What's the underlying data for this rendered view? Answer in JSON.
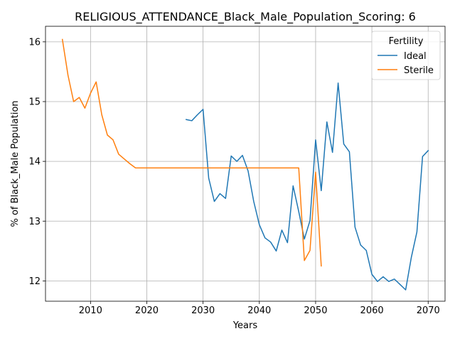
{
  "chart_data": {
    "type": "line",
    "title": "RELIGIOUS_ATTENDANCE_Black_Male_Population_Scoring: 6",
    "xlabel": "Years",
    "ylabel": "% of Black_Male Population",
    "xlim": [
      2002,
      2073
    ],
    "ylim": [
      11.66,
      16.26
    ],
    "xticks": [
      2010,
      2020,
      2030,
      2040,
      2050,
      2060,
      2070
    ],
    "yticks": [
      12,
      13,
      14,
      15,
      16
    ],
    "grid": true,
    "legend": {
      "title": "Fertility",
      "position": "top-right"
    },
    "series": [
      {
        "name": "Ideal",
        "color": "#1f77b4",
        "x": [
          2027,
          2028,
          2029,
          2030,
          2031,
          2032,
          2033,
          2034,
          2035,
          2036,
          2037,
          2038,
          2039,
          2040,
          2041,
          2042,
          2043,
          2044,
          2045,
          2046,
          2047,
          2048,
          2049,
          2050,
          2051,
          2052,
          2053,
          2054,
          2055,
          2056,
          2057,
          2058,
          2059,
          2060,
          2061,
          2062,
          2063,
          2064,
          2065,
          2066,
          2067,
          2068,
          2069,
          2070
        ],
        "y": [
          14.7,
          14.68,
          14.78,
          14.87,
          13.72,
          13.33,
          13.46,
          13.38,
          14.09,
          14.0,
          14.1,
          13.84,
          13.33,
          12.94,
          12.72,
          12.65,
          12.5,
          12.85,
          12.64,
          13.59,
          13.16,
          12.7,
          13.01,
          14.36,
          13.51,
          14.66,
          14.15,
          15.31,
          14.29,
          14.16,
          12.9,
          12.6,
          12.51,
          12.11,
          11.99,
          12.07,
          11.99,
          12.03,
          11.94,
          11.85,
          12.39,
          12.82,
          14.08,
          14.18
        ]
      },
      {
        "name": "Sterile",
        "color": "#ff7f0e",
        "x": [
          2005,
          2006,
          2007,
          2008,
          2009,
          2010,
          2011,
          2012,
          2013,
          2014,
          2015,
          2016,
          2017,
          2018,
          2019,
          2020,
          2030,
          2040,
          2045,
          2046,
          2047,
          2048,
          2049,
          2050,
          2051
        ],
        "y": [
          16.04,
          15.44,
          15.0,
          15.07,
          14.89,
          15.14,
          15.33,
          14.78,
          14.44,
          14.36,
          14.12,
          14.04,
          13.96,
          13.89,
          13.89,
          13.89,
          13.89,
          13.89,
          13.89,
          13.89,
          13.89,
          12.34,
          12.51,
          13.82,
          12.25
        ]
      }
    ]
  }
}
